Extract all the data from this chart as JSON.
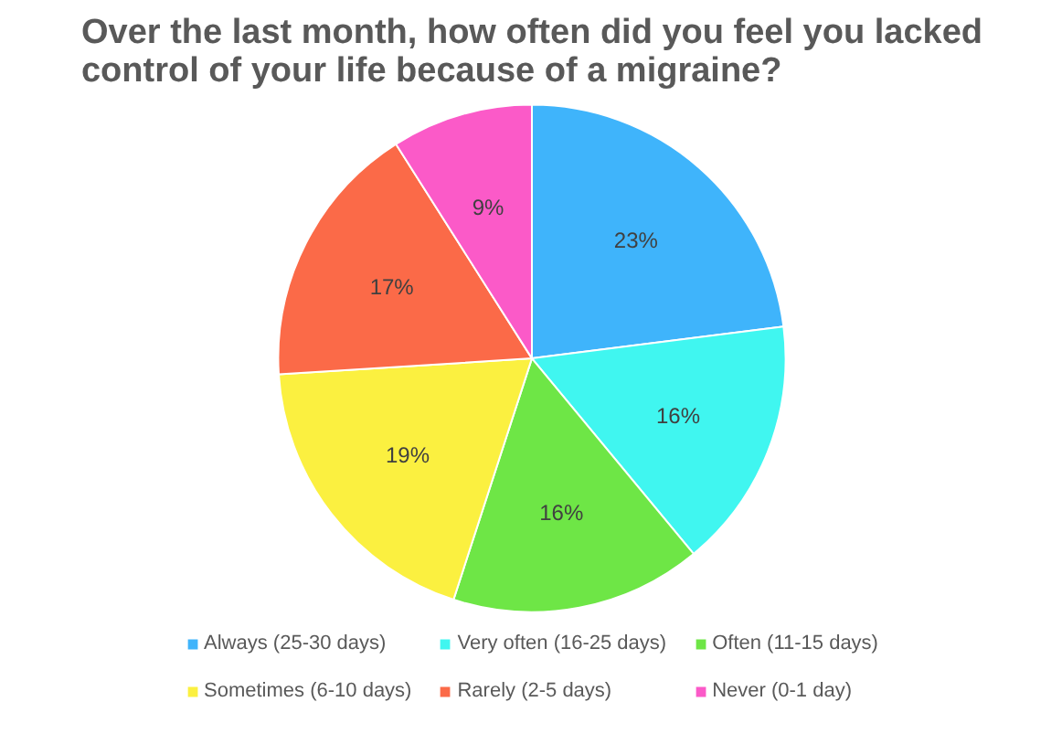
{
  "chart_data": {
    "type": "pie",
    "title": "Over the last month, how often did you feel you lacked control of your life because of a migraine?",
    "categories": [
      "Always (25-30 days)",
      "Very often (16-25 days)",
      "Often (11-15 days)",
      "Sometimes (6-10 days)",
      "Rarely (2-5 days)",
      "Never (0-1 day)"
    ],
    "values": [
      23,
      16,
      16,
      19,
      17,
      9
    ],
    "value_labels": [
      "23%",
      "16%",
      "16%",
      "19%",
      "17%",
      "9%"
    ],
    "colors": [
      "#3fb4fb",
      "#40f6f0",
      "#6ee646",
      "#fbf040",
      "#fb6a48",
      "#fb5ac8"
    ],
    "legend": "bottom"
  }
}
